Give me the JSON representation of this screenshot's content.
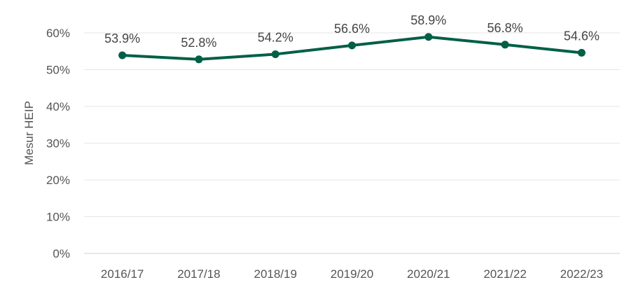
{
  "chart_data": {
    "type": "line",
    "title": "",
    "xlabel": "",
    "ylabel": "Mesur HEIP",
    "categories": [
      "2016/17",
      "2017/18",
      "2018/19",
      "2019/20",
      "2020/21",
      "2021/22",
      "2022/23"
    ],
    "series": [
      {
        "values": [
          53.9,
          52.8,
          54.2,
          56.6,
          58.9,
          56.8,
          54.6
        ],
        "labels": [
          "53.9%",
          "52.8%",
          "54.2%",
          "56.6%",
          "58.9%",
          "56.8%",
          "54.6%"
        ],
        "color": "#005f46"
      }
    ],
    "ylim": [
      0,
      60
    ],
    "yticks": [
      0,
      10,
      20,
      30,
      40,
      50,
      60
    ],
    "ytick_labels": [
      "0%",
      "10%",
      "20%",
      "30%",
      "40%",
      "50%",
      "60%"
    ],
    "grid": true,
    "legend": "none"
  }
}
